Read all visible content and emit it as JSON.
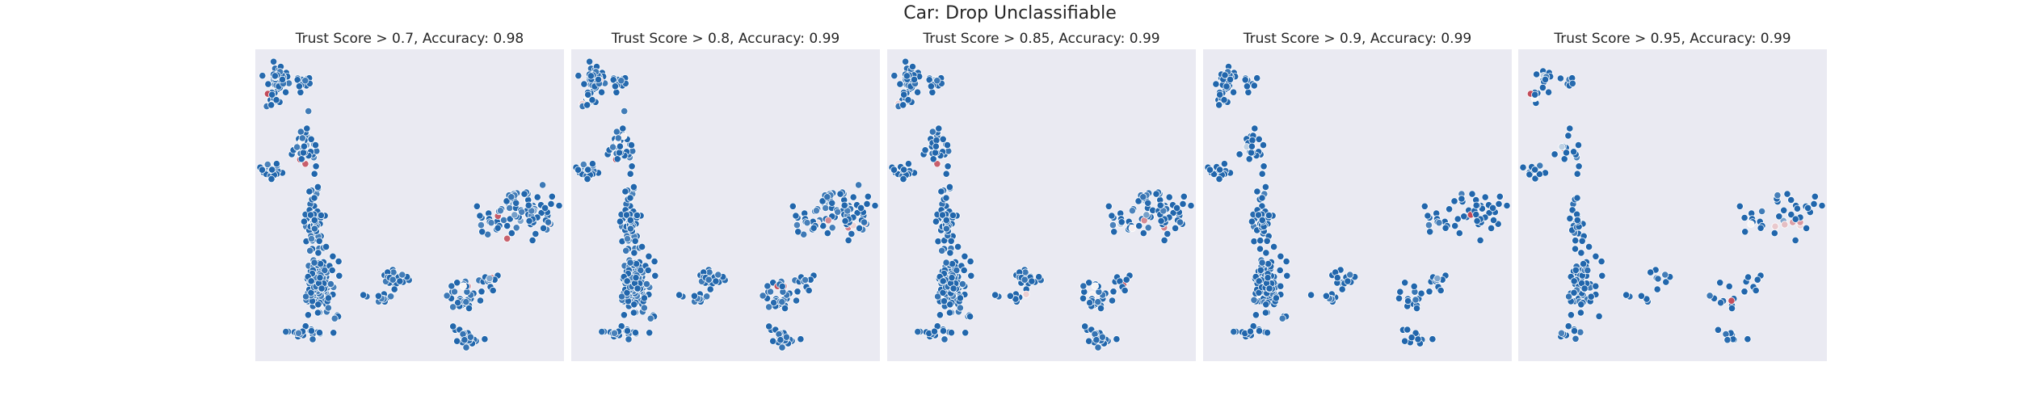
{
  "figure": {
    "title": "Car: Drop Unclassifiable"
  },
  "colors": {
    "background": "#eaeaf2",
    "correct": "#2166ac",
    "mid": "#f7f7f7",
    "incorrect": "#b2182b"
  },
  "chart_data": [
    {
      "type": "scatter",
      "title": "Trust Score > 0.7, Accuracy: 0.98",
      "threshold": 0.7,
      "accuracy": 0.98,
      "grid": false,
      "axes": "hidden"
    },
    {
      "type": "scatter",
      "title": "Trust Score > 0.8, Accuracy: 0.99",
      "threshold": 0.8,
      "accuracy": 0.99,
      "grid": false,
      "axes": "hidden"
    },
    {
      "type": "scatter",
      "title": "Trust Score > 0.85, Accuracy: 0.99",
      "threshold": 0.85,
      "accuracy": 0.99,
      "grid": false,
      "axes": "hidden"
    },
    {
      "type": "scatter",
      "title": "Trust Score > 0.9, Accuracy: 0.99",
      "threshold": 0.9,
      "accuracy": 0.99,
      "grid": false,
      "axes": "hidden"
    },
    {
      "type": "scatter",
      "title": "Trust Score > 0.95, Accuracy: 0.99",
      "threshold": 0.95,
      "accuracy": 0.99,
      "grid": false,
      "axes": "hidden"
    }
  ]
}
